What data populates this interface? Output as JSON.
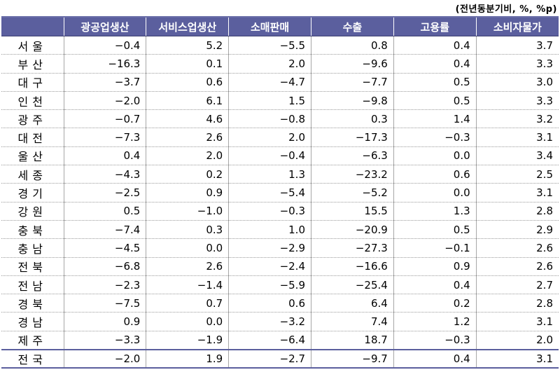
{
  "unit_note": "(전년동분기비, %, %p)",
  "headers": [
    "",
    "광공업생산",
    "서비스업생산",
    "소매판매",
    "수출",
    "고용률",
    "소비자물가"
  ],
  "rows": [
    {
      "region": "서울",
      "values": [
        "−0.4",
        "5.2",
        "−5.5",
        "0.8",
        "0.4",
        "3.7"
      ]
    },
    {
      "region": "부산",
      "values": [
        "−16.3",
        "0.1",
        "2.0",
        "−9.6",
        "0.4",
        "3.3"
      ]
    },
    {
      "region": "대구",
      "values": [
        "−3.7",
        "0.6",
        "−4.7",
        "−7.7",
        "0.5",
        "3.0"
      ]
    },
    {
      "region": "인천",
      "values": [
        "−2.0",
        "6.1",
        "1.5",
        "−9.8",
        "0.5",
        "3.3"
      ]
    },
    {
      "region": "광주",
      "values": [
        "−0.7",
        "4.6",
        "−0.8",
        "0.3",
        "1.4",
        "3.2"
      ]
    },
    {
      "region": "대전",
      "values": [
        "−7.3",
        "2.6",
        "2.0",
        "−17.3",
        "−0.3",
        "3.1"
      ]
    },
    {
      "region": "울산",
      "values": [
        "0.4",
        "2.0",
        "−0.4",
        "−6.3",
        "0.0",
        "3.4"
      ]
    },
    {
      "region": "세종",
      "values": [
        "−4.3",
        "0.2",
        "1.3",
        "−23.2",
        "0.6",
        "2.5"
      ]
    },
    {
      "region": "경기",
      "values": [
        "−2.5",
        "0.9",
        "−5.4",
        "−5.2",
        "0.0",
        "3.1"
      ]
    },
    {
      "region": "강원",
      "values": [
        "0.5",
        "−1.0",
        "−0.3",
        "15.5",
        "1.3",
        "2.8"
      ]
    },
    {
      "region": "충북",
      "values": [
        "−7.4",
        "0.3",
        "1.0",
        "−20.9",
        "0.5",
        "2.9"
      ]
    },
    {
      "region": "충남",
      "values": [
        "−4.5",
        "0.0",
        "−2.9",
        "−27.3",
        "−0.1",
        "2.6"
      ]
    },
    {
      "region": "전북",
      "values": [
        "−6.8",
        "2.6",
        "−2.4",
        "−16.6",
        "0.9",
        "2.6"
      ]
    },
    {
      "region": "전남",
      "values": [
        "−2.3",
        "−1.4",
        "−5.9",
        "−25.4",
        "0.4",
        "2.7"
      ]
    },
    {
      "region": "경북",
      "values": [
        "−7.5",
        "0.7",
        "0.6",
        "6.4",
        "0.2",
        "2.8"
      ]
    },
    {
      "region": "경남",
      "values": [
        "0.9",
        "0.0",
        "−3.2",
        "7.4",
        "1.2",
        "3.1"
      ]
    },
    {
      "region": "제주",
      "values": [
        "−3.3",
        "−1.9",
        "−6.4",
        "18.7",
        "−0.3",
        "2.0"
      ]
    }
  ],
  "total": {
    "region": "전국",
    "values": [
      "−2.0",
      "1.9",
      "−2.7",
      "−9.7",
      "0.4",
      "3.1"
    ]
  }
}
